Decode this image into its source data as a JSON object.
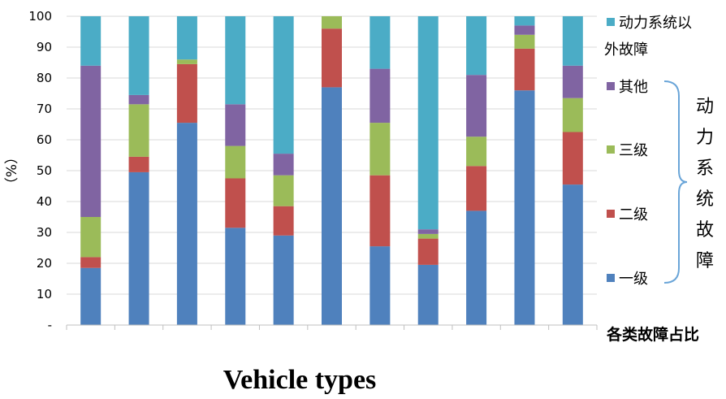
{
  "chart_data": {
    "type": "bar",
    "stacked": true,
    "xlabel": "Vehicle types",
    "ylabel": "（%）",
    "ylim": [
      0,
      100
    ],
    "yticks": [
      "-",
      "10",
      "20",
      "30",
      "40",
      "50",
      "60",
      "70",
      "80",
      "90",
      "100"
    ],
    "grid": true,
    "legend_position": "right",
    "caption": "各类故障占比",
    "brace_label": "动力系统故障",
    "series": [
      {
        "name": "一级",
        "color": "#4F81BD",
        "values": [
          18.5,
          49.5,
          65.5,
          31.5,
          29,
          77,
          25.5,
          19.5,
          37,
          76,
          45.5
        ]
      },
      {
        "name": "二级",
        "color": "#C0504D",
        "values": [
          3.5,
          5,
          19,
          16,
          9.5,
          19,
          23,
          8.5,
          14.5,
          13.5,
          17
        ]
      },
      {
        "name": "三级",
        "color": "#9BBB59",
        "values": [
          13,
          17,
          1.5,
          10.5,
          10,
          4,
          17,
          1.5,
          9.5,
          4.5,
          11
        ]
      },
      {
        "name": "其他",
        "color": "#8064A2",
        "values": [
          49,
          3,
          0,
          13.5,
          7,
          0,
          17.5,
          1.5,
          20,
          3,
          10.5
        ]
      },
      {
        "name": "动力系统以外故障",
        "color": "#4BACC6",
        "values": [
          16,
          25.5,
          14,
          28.5,
          44.5,
          0,
          17,
          69,
          19,
          3,
          16
        ]
      }
    ],
    "legend_lines": [
      [
        "动力系统以",
        "外故障"
      ],
      [
        "其他"
      ],
      [
        "三级"
      ],
      [
        "二级"
      ],
      [
        "一级"
      ]
    ]
  }
}
